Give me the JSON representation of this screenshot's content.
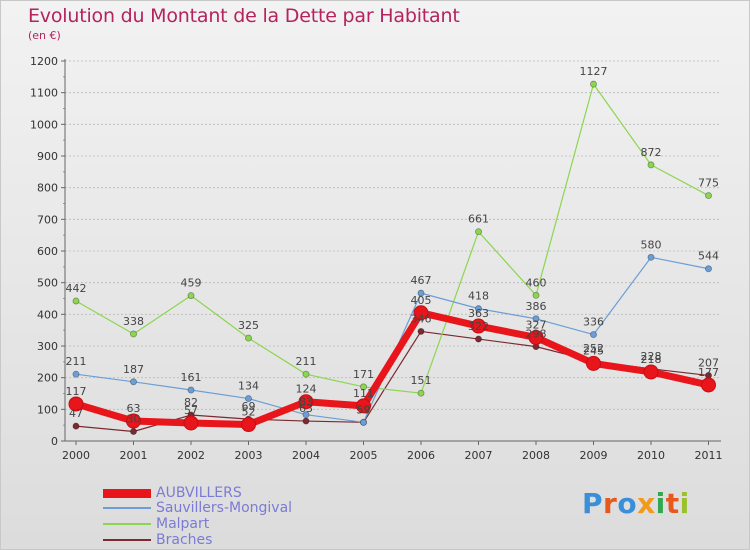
{
  "header": {
    "title": "Evolution du Montant de la Dette par Habitant",
    "subtitle": "(en €)"
  },
  "logo": {
    "text": "Proxiti",
    "colors": [
      "#3a8fd8",
      "#e8571c",
      "#3a8fd8",
      "#f29a1b",
      "#2fa84f",
      "#e8571c",
      "#9ac22b"
    ]
  },
  "chart_data": {
    "type": "line",
    "x": [
      "2000",
      "2001",
      "2002",
      "2003",
      "2004",
      "2005",
      "2006",
      "2007",
      "2008",
      "2009",
      "2010",
      "2011"
    ],
    "ylim": [
      0,
      1200
    ],
    "yticks": [
      "0",
      "100",
      "200",
      "300",
      "400",
      "500",
      "600",
      "700",
      "800",
      "900",
      "1000",
      "1100",
      "1200"
    ],
    "grid": "horizontal",
    "legend_position": "bottom-left",
    "series": [
      {
        "name": "Braches",
        "color": "#7a2a30",
        "width": 1.2,
        "marker": 4,
        "values": [
          47,
          30,
          82,
          69,
          63,
          59,
          346,
          322,
          298,
          252,
          228,
          207
        ],
        "labels": [
          "47",
          "30",
          "82",
          "69",
          "63",
          "59",
          "346",
          "322",
          "298",
          "252",
          "228",
          "207"
        ]
      },
      {
        "name": "Malpart",
        "color": "#8cd64f",
        "width": 1.2,
        "marker": 4,
        "values": [
          442,
          338,
          459,
          325,
          211,
          171,
          151,
          661,
          460,
          1127,
          872,
          775
        ],
        "labels": [
          "442",
          "338",
          "459",
          "325",
          "211",
          "171",
          "151",
          "661",
          "460",
          "1127",
          "872",
          "775"
        ]
      },
      {
        "name": "Sauvillers-Mongival",
        "color": "#6b9ed6",
        "width": 1.2,
        "marker": 4,
        "values": [
          211,
          187,
          161,
          134,
          83,
          59,
          467,
          418,
          386,
          336,
          580,
          544
        ],
        "labels": [
          "211",
          "187",
          "161",
          "134",
          "83",
          "59",
          "467",
          "418",
          "386",
          "336",
          "580",
          "544"
        ]
      },
      {
        "name": "AUBVILLERS",
        "color": "#e8151b",
        "width": 7,
        "marker": 7,
        "values": [
          117,
          63,
          57,
          52,
          124,
          111,
          405,
          363,
          327,
          245,
          218,
          177
        ],
        "labels": [
          "117",
          "63",
          "57",
          "52",
          "124",
          "111",
          "405",
          "363",
          "327",
          "245",
          "218",
          "177"
        ]
      }
    ],
    "legend_order": [
      "AUBVILLERS",
      "Sauvillers-Mongival",
      "Malpart",
      "Braches"
    ]
  }
}
